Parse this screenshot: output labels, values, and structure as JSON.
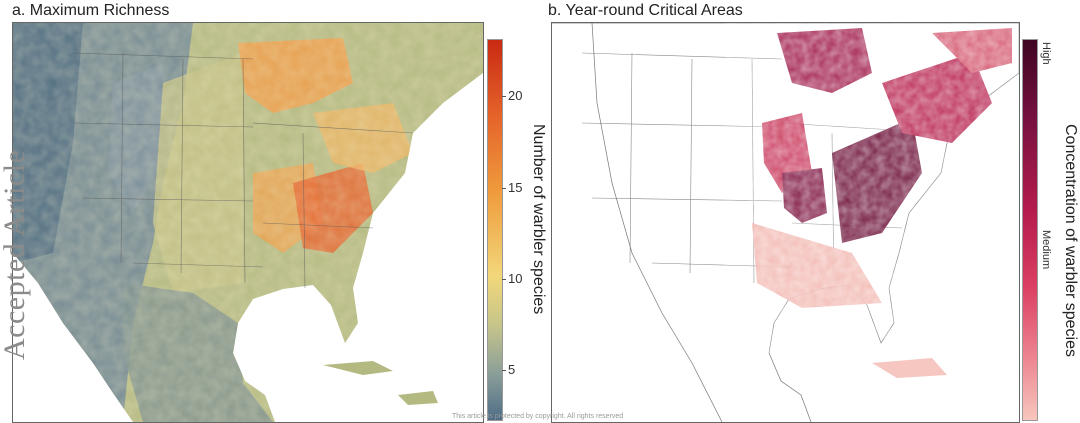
{
  "panel_a": {
    "title": "a. Maximum Richness",
    "colorbar_label": "Number of warbler species",
    "colorbar_ticks": [
      "20",
      "15",
      "10",
      "5"
    ],
    "colormap": [
      "#c92a12",
      "#e5632a",
      "#ef9b3c",
      "#f2d77a",
      "#c6c58a",
      "#8a9e99",
      "#4d6c86"
    ]
  },
  "panel_b": {
    "title": "b. Year-round Critical Areas",
    "colorbar_label": "Concentration of warbler species",
    "tick_high": "High",
    "tick_medium": "Medium",
    "colormap": [
      "#3f0622",
      "#7a1240",
      "#b51b4d",
      "#db3f63",
      "#ee8a94",
      "#f7c7bd"
    ]
  },
  "watermark": "Accepted Article",
  "copyright": "This article is protected by copyright. All rights reserved"
}
